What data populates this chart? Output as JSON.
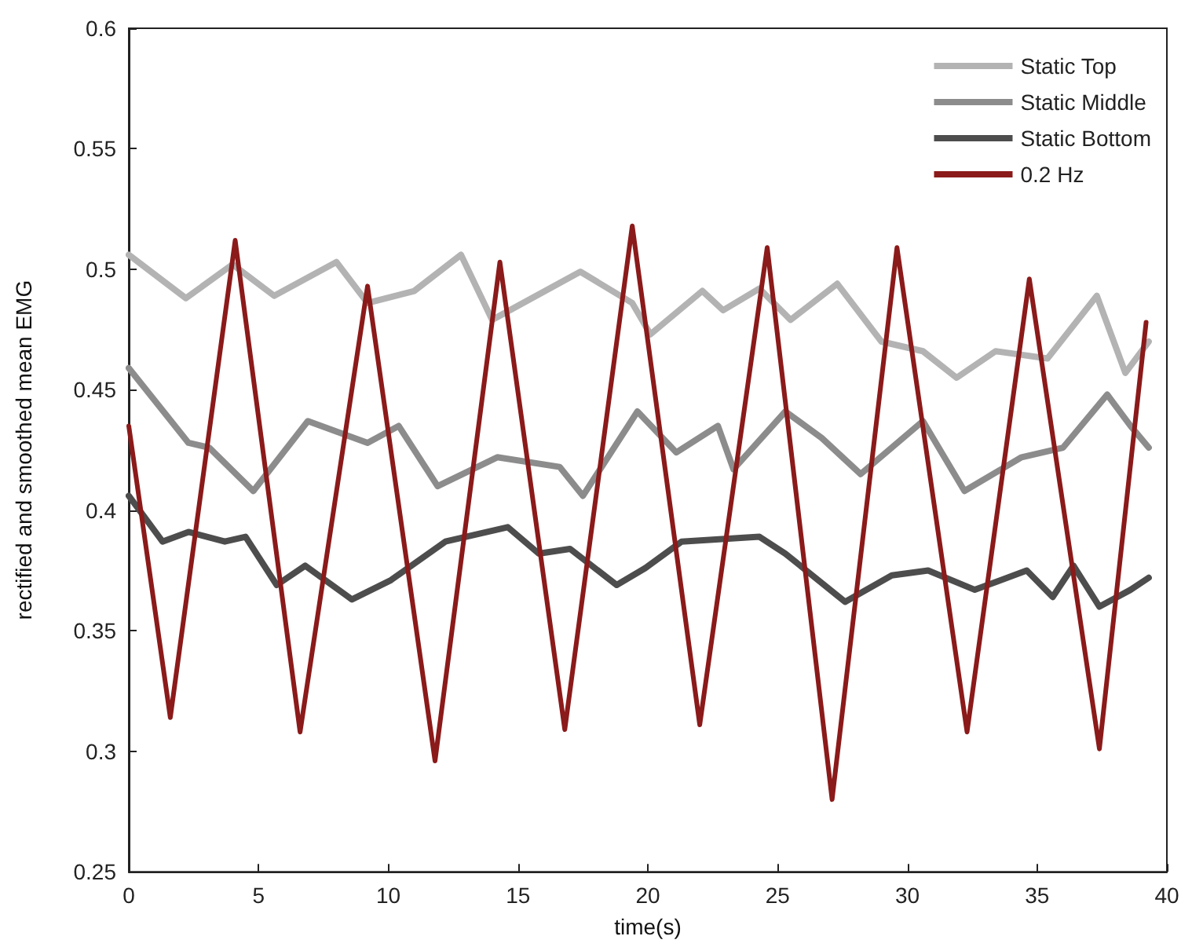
{
  "chart_data": {
    "type": "line",
    "xlabel": "time(s)",
    "ylabel": "rectified and smoothed mean EMG",
    "xlim": [
      0,
      40
    ],
    "xticks": [
      0,
      5,
      10,
      15,
      20,
      25,
      30,
      35,
      40
    ],
    "ylim": [
      0.25,
      0.6
    ],
    "yticks": [
      0.25,
      0.3,
      0.35,
      0.4,
      0.45,
      0.5,
      0.55,
      0.6
    ],
    "grid": false,
    "legend": "top right",
    "marker": "none",
    "line_style": "solid",
    "series": [
      {
        "name": "Static Top",
        "color": "#b3b3b3",
        "x": [
          0,
          2.2,
          4.0,
          5.6,
          8.0,
          9.2,
          11.0,
          12.8,
          14.0,
          17.4,
          19.4,
          20.1,
          22.1,
          22.9,
          24.3,
          25.5,
          27.3,
          29.0,
          30.6,
          31.9,
          33.4,
          35.4,
          37.3,
          38.4,
          39.3
        ],
        "values": [
          0.506,
          0.488,
          0.502,
          0.489,
          0.503,
          0.486,
          0.491,
          0.506,
          0.479,
          0.499,
          0.486,
          0.473,
          0.491,
          0.483,
          0.492,
          0.479,
          0.494,
          0.47,
          0.466,
          0.455,
          0.466,
          0.463,
          0.489,
          0.457,
          0.47
        ]
      },
      {
        "name": "Static Middle",
        "color": "#8c8c8c",
        "x": [
          0,
          2.3,
          3.1,
          4.8,
          6.9,
          9.2,
          10.4,
          11.9,
          14.2,
          16.6,
          17.5,
          19.6,
          21.1,
          22.7,
          23.3,
          25.3,
          26.7,
          28.2,
          30.6,
          32.2,
          34.4,
          36.0,
          37.7,
          38.6,
          39.3
        ],
        "values": [
          0.459,
          0.428,
          0.426,
          0.408,
          0.437,
          0.428,
          0.435,
          0.41,
          0.422,
          0.418,
          0.406,
          0.441,
          0.424,
          0.435,
          0.417,
          0.441,
          0.43,
          0.415,
          0.437,
          0.408,
          0.422,
          0.426,
          0.448,
          0.435,
          0.426
        ]
      },
      {
        "name": "Static Bottom",
        "color": "#4d4d4d",
        "x": [
          0,
          1.3,
          2.3,
          3.7,
          4.5,
          5.7,
          6.8,
          8.6,
          10.1,
          12.2,
          14.6,
          15.8,
          17.0,
          18.8,
          19.9,
          21.3,
          24.3,
          25.3,
          27.6,
          29.4,
          30.8,
          32.6,
          34.6,
          35.6,
          36.4,
          37.4,
          38.6,
          39.3
        ],
        "values": [
          0.406,
          0.387,
          0.391,
          0.387,
          0.389,
          0.369,
          0.377,
          0.363,
          0.371,
          0.387,
          0.393,
          0.382,
          0.384,
          0.369,
          0.376,
          0.387,
          0.389,
          0.382,
          0.362,
          0.373,
          0.375,
          0.367,
          0.375,
          0.364,
          0.377,
          0.36,
          0.367,
          0.372
        ]
      },
      {
        "name": "0.2 Hz",
        "color": "#8b1a1a",
        "x": [
          0,
          1.6,
          4.1,
          6.6,
          9.2,
          11.8,
          14.3,
          16.8,
          19.4,
          22.0,
          24.6,
          27.1,
          29.6,
          32.3,
          34.7,
          37.4,
          39.2
        ],
        "values": [
          0.435,
          0.314,
          0.512,
          0.308,
          0.493,
          0.296,
          0.503,
          0.309,
          0.518,
          0.311,
          0.509,
          0.28,
          0.509,
          0.308,
          0.496,
          0.301,
          0.478
        ]
      }
    ]
  }
}
